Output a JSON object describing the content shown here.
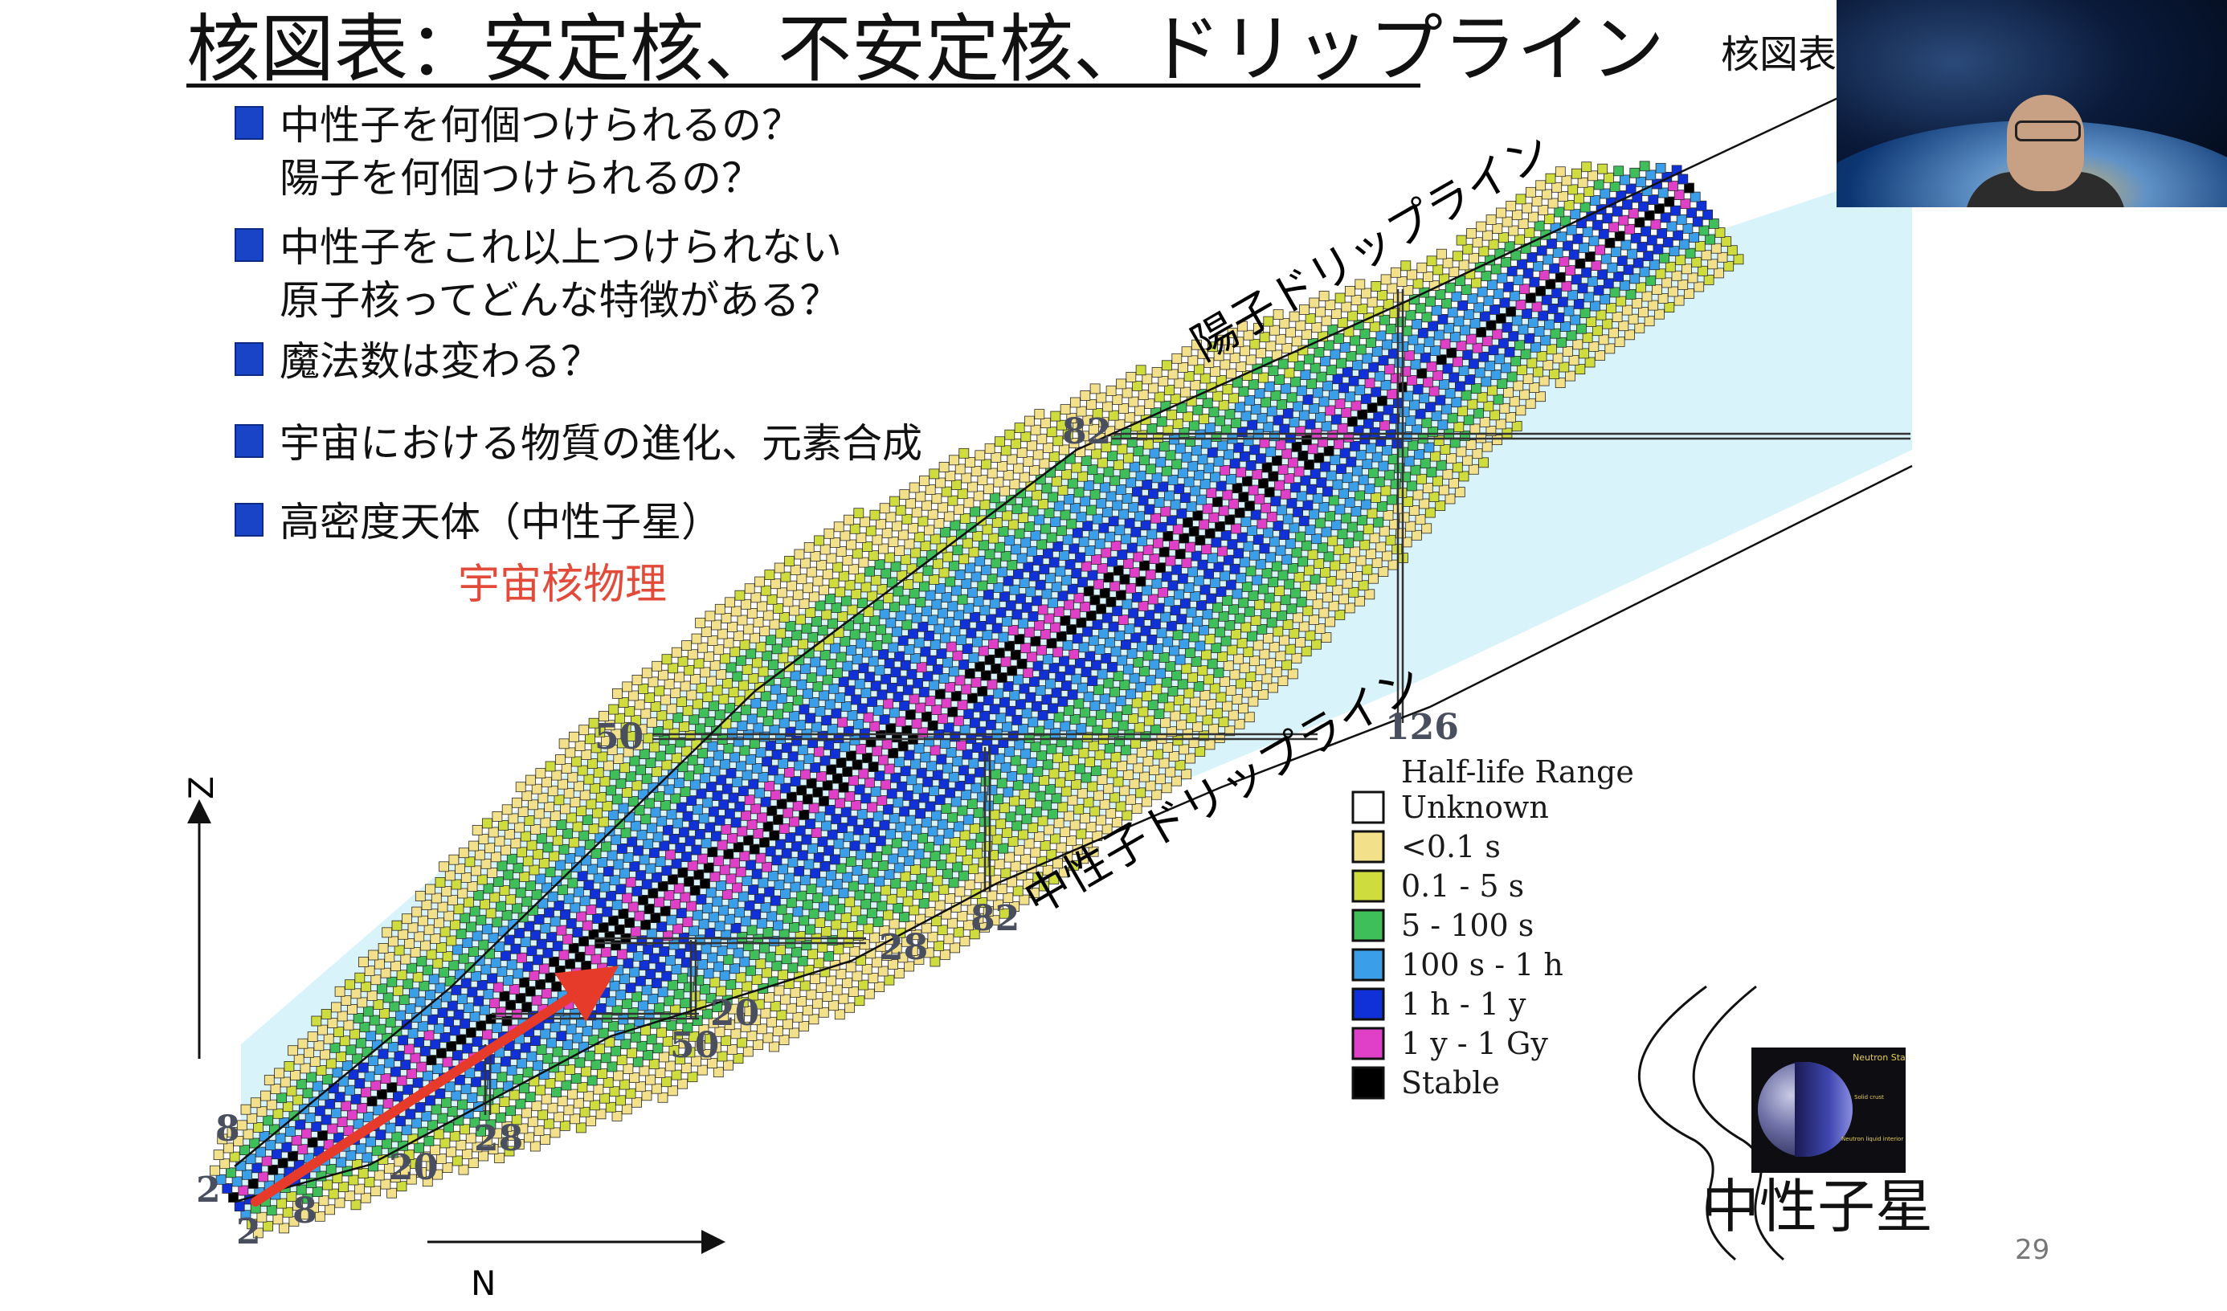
{
  "slide": {
    "title": "核図表：安定核、不安定核、ドリップライン",
    "bullets": [
      {
        "lines": [
          "中性子を何個つけられるの？",
          "陽子を何個つけられるの？"
        ]
      },
      {
        "lines": [
          "中性子をこれ以上つけられない",
          "原子核ってどんな特徴がある？"
        ]
      },
      {
        "lines": [
          "魔法数は変わる？"
        ]
      },
      {
        "lines": [
          "宇宙における物質の進化、元素合成"
        ]
      },
      {
        "lines": [
          "高密度天体（中性子星）"
        ]
      }
    ],
    "highlight_note": "宇宙核物理",
    "page_number": "29",
    "top_right_label": "核図表"
  },
  "chart": {
    "axis_z": "Z",
    "axis_n": "N",
    "proton_drip_label": "陽子ドリップライン",
    "neutron_drip_label": "中性子ドリップライン",
    "magic_numbers": {
      "z_labels": [
        "2",
        "8",
        "20",
        "28",
        "50",
        "82"
      ],
      "n_labels": [
        "2",
        "8",
        "20",
        "28",
        "20",
        "50",
        "28",
        "82",
        "126"
      ]
    },
    "legend": {
      "title": "Half-life Range",
      "items": [
        {
          "label": "Unknown",
          "color": "#ffffff"
        },
        {
          "label": "<0.1 s",
          "color": "#f3e08a"
        },
        {
          "label": "0.1 - 5 s",
          "color": "#cfdc3e"
        },
        {
          "label": "5  - 100 s",
          "color": "#3fbf5a"
        },
        {
          "label": "100 s - 1 h",
          "color": "#3b9ee8"
        },
        {
          "label": "1 h - 1 y",
          "color": "#1030d8"
        },
        {
          "label": "1 y - 1 Gy",
          "color": "#e040c8"
        },
        {
          "label": "Stable",
          "color": "#000000"
        }
      ]
    }
  },
  "neutron_star": {
    "label": "中性子星",
    "inset_title": "Neutron Star",
    "inset_text1": "Solid crust",
    "inset_text2": "Neutron liquid interior"
  }
}
